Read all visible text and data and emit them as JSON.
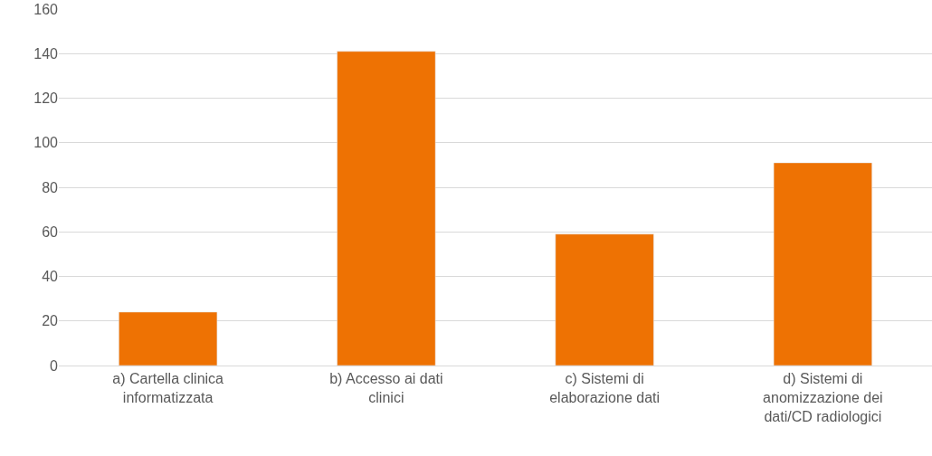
{
  "chart_data": {
    "type": "bar",
    "categories": [
      "a) Cartella clinica informatizzata",
      "b) Accesso ai dati clinici",
      "c) Sistemi di elaborazione dati",
      "d) Sistemi di anomizzazione dei dati/CD radiologici"
    ],
    "values": [
      24,
      141,
      59,
      91
    ],
    "color": "#ee7203",
    "ylim": [
      0,
      160
    ],
    "yticks": [
      0,
      20,
      40,
      60,
      80,
      100,
      120,
      140,
      160
    ],
    "grid": "y",
    "legend": false
  }
}
